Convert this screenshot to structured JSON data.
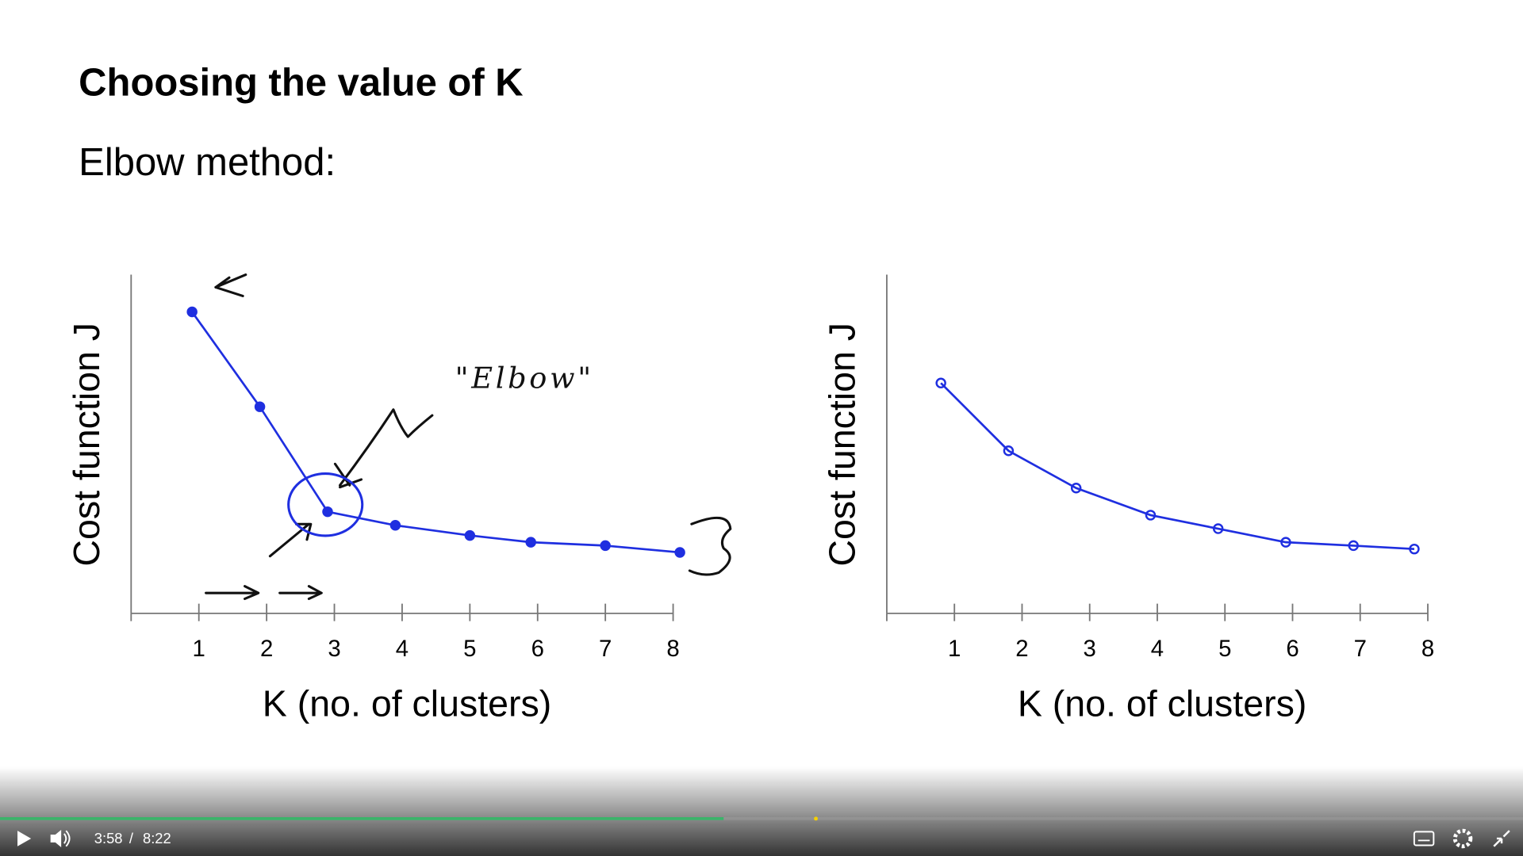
{
  "slide": {
    "title": "Choosing the value of K",
    "subtitle": "Elbow method:"
  },
  "chart_data": [
    {
      "type": "line",
      "y_label": "Cost function J",
      "x_label": "K (no. of clusters)",
      "annotations": [
        "\"Elbow\""
      ],
      "xlim": [
        0,
        8
      ],
      "xticks": [
        1,
        2,
        3,
        4,
        5,
        6,
        7,
        8
      ],
      "ylim": [
        0,
        10
      ],
      "series": [
        {
          "color": "#1f2fe0",
          "x": [
            0.9,
            1.9,
            2.9,
            3.9,
            5,
            5.9,
            7,
            8.1
          ],
          "values": [
            8.9,
            6.1,
            3.0,
            2.6,
            2.3,
            2.1,
            2.0,
            1.8
          ]
        }
      ]
    },
    {
      "type": "line",
      "y_label": "Cost function J",
      "x_label": "K (no. of clusters)",
      "xlim": [
        0,
        8
      ],
      "xticks": [
        1,
        2,
        3,
        4,
        5,
        6,
        7,
        8
      ],
      "ylim": [
        0,
        10
      ],
      "series": [
        {
          "color": "#1f2fe0",
          "x": [
            0.8,
            1.8,
            2.8,
            3.9,
            4.9,
            5.9,
            6.9,
            7.8
          ],
          "values": [
            6.8,
            4.8,
            3.7,
            2.9,
            2.5,
            2.1,
            2.0,
            1.9
          ]
        }
      ]
    }
  ],
  "player": {
    "current_time": "3:58",
    "separator": "/",
    "duration": "8:22"
  }
}
